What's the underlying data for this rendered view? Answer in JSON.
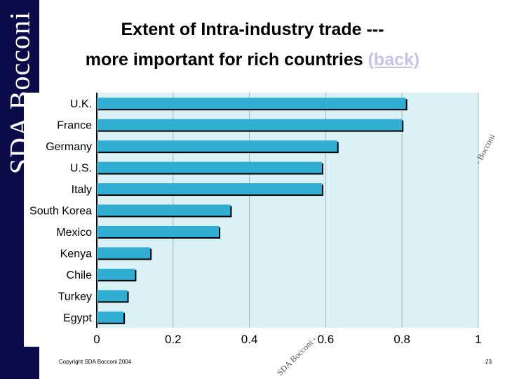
{
  "brand": {
    "text": "SDA Bocconi"
  },
  "header": {
    "title_line1": "Extent of Intra-industry trade ---",
    "title_line2": "more important for rich countries ",
    "back_link": "(back)"
  },
  "watermarks": [
    "- Bocconi",
    "SDA Bocconi -"
  ],
  "footer": {
    "copyright": "Copyright SDA Bocconi 2004",
    "page": "23"
  },
  "colors": {
    "bar": "#32aed3",
    "plot_bg": "#daf1f6",
    "sidebar": "#0c0b4a",
    "link": "#c9c2e8"
  },
  "chart_data": {
    "type": "bar",
    "orientation": "horizontal",
    "categories": [
      "U.K.",
      "France",
      "Germany",
      "U.S.",
      "Italy",
      "South Korea",
      "Mexico",
      "Kenya",
      "Chile",
      "Turkey",
      "Egypt"
    ],
    "values": [
      0.81,
      0.8,
      0.63,
      0.59,
      0.59,
      0.35,
      0.32,
      0.14,
      0.1,
      0.08,
      0.07
    ],
    "xticks": [
      "0",
      "0.2",
      "0.4",
      "0.6",
      "0.8",
      "1"
    ],
    "xlim": [
      0,
      1
    ],
    "grid": true,
    "title": "",
    "xlabel": "",
    "ylabel": ""
  }
}
